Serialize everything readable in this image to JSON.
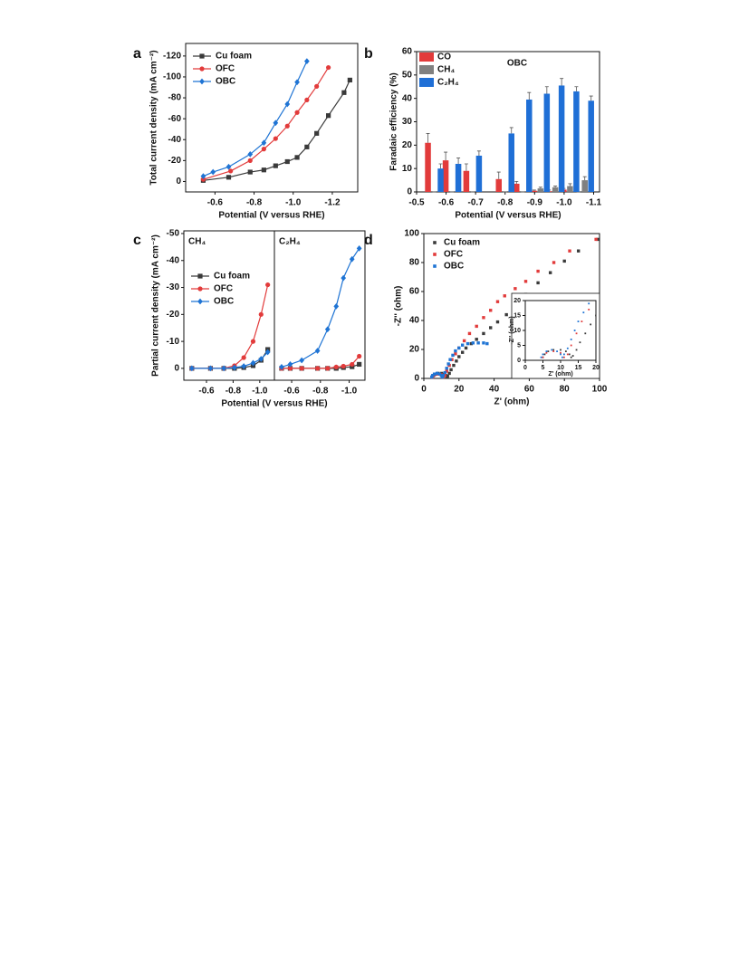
{
  "chart_data": [
    {
      "panel": "a",
      "type": "line",
      "xlabel": "Potential (V versus RHE)",
      "ylabel": "Total current density  (mA cm⁻²)",
      "xlim": [
        -0.45,
        -1.33
      ],
      "xticks": [
        -0.6,
        -0.8,
        {
          "value": -1,
          "label": "-1.0"
        },
        -1.2
      ],
      "ylim": [
        10,
        -132
      ],
      "yticks": [
        0,
        -20,
        -40,
        -60,
        -80,
        -100,
        -120
      ],
      "series": [
        {
          "name": "Cu foam",
          "color": "#3a3a3a",
          "marker": "square",
          "x": [
            -0.54,
            -0.67,
            -0.78,
            -0.85,
            -0.91,
            -0.97,
            -1.02,
            -1.07,
            -1.12,
            -1.18,
            -1.26,
            -1.29
          ],
          "values": [
            -1,
            -4,
            -9,
            -11,
            -15,
            -19,
            -23,
            -33,
            -46,
            -63,
            -85,
            -97
          ]
        },
        {
          "name": "OFC",
          "color": "#e23b3b",
          "marker": "circle",
          "x": [
            -0.54,
            -0.68,
            -0.78,
            -0.85,
            -0.91,
            -0.97,
            -1.02,
            -1.07,
            -1.12,
            -1.18
          ],
          "values": [
            -2,
            -10,
            -20,
            -31,
            -41,
            -53,
            -66,
            -78,
            -91,
            -109
          ]
        },
        {
          "name": "OBC",
          "color": "#1f74d4",
          "marker": "diamond",
          "x": [
            -0.54,
            -0.59,
            -0.67,
            -0.78,
            -0.85,
            -0.91,
            -0.97,
            -1.02,
            -1.07
          ],
          "values": [
            -5,
            -9,
            -14,
            -26,
            -37,
            -56,
            -74,
            -95,
            -115
          ]
        }
      ]
    },
    {
      "panel": "b",
      "type": "bar",
      "annotation": "OBC",
      "xlabel": "Potential (V versus RHE)",
      "ylabel": "Faradaic efficiency (%)",
      "xlim": [
        -0.5,
        -1.12
      ],
      "xticks": [
        -0.5,
        -0.6,
        -0.7,
        -0.8,
        -0.9,
        {
          "value": -1,
          "label": "-1.0"
        },
        -1.1
      ],
      "ylim": [
        0,
        60
      ],
      "yticks": [
        0,
        10,
        20,
        30,
        40,
        50,
        60
      ],
      "x": [
        -0.56,
        -0.62,
        -0.69,
        -0.8,
        -0.86,
        -0.92,
        -0.97,
        -1.02,
        -1.07
      ],
      "series": [
        {
          "name": "CO",
          "color": "#e23b3b",
          "values": [
            21,
            13.5,
            9,
            5.5,
            3.5,
            0.5,
            0.3,
            1,
            0
          ],
          "errors": [
            4,
            3.5,
            3,
            3,
            1,
            0.3,
            0.5,
            0.5,
            0
          ]
        },
        {
          "name": "CH₄",
          "color": "#808080",
          "values": [
            0,
            0,
            0,
            0,
            0,
            1.5,
            2,
            2.5,
            5
          ],
          "errors": [
            0,
            0,
            0,
            0,
            0,
            0.5,
            0.5,
            1,
            1.5
          ]
        },
        {
          "name": "C₂H₄",
          "color": "#1f6fd6",
          "values": [
            10,
            12,
            15.5,
            25,
            39.5,
            42,
            45.5,
            43,
            39
          ],
          "errors": [
            2,
            2.5,
            2,
            2.5,
            3,
            3,
            3,
            2,
            2
          ]
        }
      ]
    },
    {
      "panel": "c",
      "type": "line",
      "xlabel": "Potential (V versus RHE)",
      "ylabel": "Partial current density  (mA cm⁻²)",
      "ylim": [
        4.4,
        -51
      ],
      "yticks": [
        0,
        -10,
        -20,
        -30,
        -40,
        -50
      ],
      "series": [
        {
          "name": "Cu foam",
          "color": "#3a3a3a",
          "marker": "square"
        },
        {
          "name": "OFC",
          "color": "#e23b3b",
          "marker": "circle"
        },
        {
          "name": "OBC",
          "color": "#1f74d4",
          "marker": "diamond"
        }
      ],
      "panels": [
        {
          "annotation": "CH₄",
          "xlim": [
            -0.43,
            -1.11
          ],
          "xticks": [
            -0.6,
            -0.8,
            {
              "value": -1,
              "label": "-1.0"
            }
          ],
          "x": [
            -0.49,
            -0.63,
            -0.73,
            -0.81,
            -0.88,
            -0.95,
            -1.01,
            -1.06
          ],
          "values": [
            [
              0,
              0,
              0,
              0,
              -0.3,
              -1,
              -3,
              -7
            ],
            [
              0,
              0,
              0,
              -1,
              -4,
              -10,
              -20,
              -31
            ],
            [
              0,
              0,
              0,
              -0.3,
              -0.8,
              -2,
              -3.5,
              -6
            ]
          ]
        },
        {
          "annotation": "C₂H₄",
          "xlim": [
            -0.48,
            -1.11
          ],
          "xticks": [
            -0.6,
            -0.8,
            {
              "value": -1,
              "label": "-1.0"
            }
          ],
          "x": [
            -0.53,
            -0.59,
            -0.67,
            -0.78,
            -0.85,
            -0.91,
            -0.96,
            -1.02,
            -1.07
          ],
          "values": [
            [
              0,
              0,
              0,
              0,
              0,
              0,
              -0.3,
              -0.6,
              -1.5
            ],
            [
              0,
              0,
              0,
              0,
              0,
              -0.5,
              -0.8,
              -1.5,
              -4.5
            ],
            [
              -0.5,
              -1.5,
              -3,
              -6.5,
              -14.5,
              -23,
              -33.5,
              -40.5,
              -44.5
            ]
          ]
        }
      ]
    },
    {
      "panel": "d",
      "type": "scatter",
      "xlabel": "Z' (ohm)",
      "ylabel": "-Z'' (ohm)",
      "xlim": [
        0,
        100
      ],
      "xticks": [
        0,
        20,
        40,
        60,
        80,
        100
      ],
      "ylim": [
        0,
        100
      ],
      "yticks": [
        0,
        20,
        40,
        60,
        80,
        100
      ],
      "series": [
        {
          "name": "Cu foam",
          "color": "#3a3a3a",
          "marker": "square",
          "x": [
            5,
            5.5,
            6.5,
            8,
            10,
            11.5,
            12.5,
            13,
            13.5,
            14.5,
            15.5,
            17,
            18.5,
            20,
            22,
            24,
            27,
            30,
            34,
            38,
            42,
            47,
            53,
            58,
            65,
            72,
            80,
            88,
            99
          ],
          "values": [
            1,
            2,
            3,
            3.5,
            3.5,
            3,
            2,
            1,
            1.5,
            3.5,
            6,
            9,
            12,
            15,
            18,
            21,
            24,
            27,
            31,
            35,
            39,
            44,
            52,
            58,
            66,
            73,
            81,
            88,
            96
          ]
        },
        {
          "name": "OFC",
          "color": "#e23b3b",
          "marker": "square",
          "x": [
            5,
            6,
            8,
            10,
            11,
            12,
            13,
            14.5,
            16,
            18,
            20,
            23,
            26,
            30,
            34,
            38,
            42,
            46,
            52,
            58,
            65,
            74,
            83,
            98
          ],
          "values": [
            1,
            2.5,
            3,
            2.5,
            1,
            2,
            5,
            9,
            13,
            17,
            21,
            26,
            31,
            36,
            42,
            47,
            53,
            57,
            62,
            67,
            74,
            80,
            88,
            96
          ]
        },
        {
          "name": "OBC",
          "color": "#1f74d4",
          "marker": "square",
          "x": [
            4.5,
            5,
            6,
            7.5,
            9,
            10,
            10.5,
            11,
            12,
            13,
            14,
            15,
            16.5,
            18,
            20,
            22,
            25,
            28,
            31,
            34,
            36
          ],
          "values": [
            1,
            2,
            3,
            3.5,
            3,
            2,
            1,
            2,
            4,
            7,
            10,
            13,
            16,
            19,
            21,
            23,
            24,
            24.5,
            24.5,
            24.5,
            24
          ]
        }
      ],
      "inset": {
        "xlabel": "Z' (ohm)",
        "ylabel": "-Z'' (ohm)",
        "xlim": [
          0,
          20
        ],
        "xticks": [
          0,
          5,
          10,
          15,
          20
        ],
        "ylim": [
          0,
          20
        ],
        "yticks": [
          0,
          5,
          10,
          15,
          20
        ]
      }
    }
  ]
}
